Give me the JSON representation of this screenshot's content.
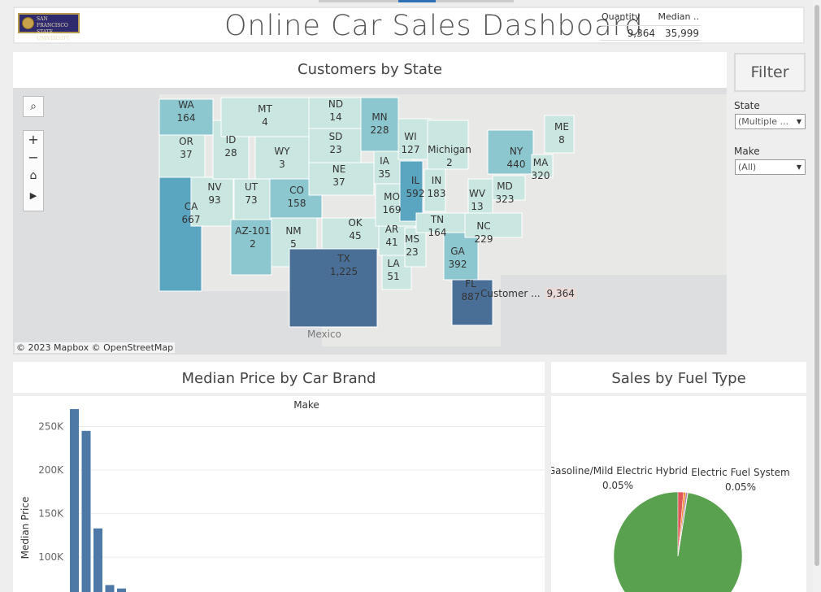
{
  "header": {
    "logo_text": "SAN FRANCISCO STATE UNIVERSITY",
    "title": "Online Car Sales Dashboard",
    "kpi": {
      "quantity_label": "Quantity",
      "median_label": "Median ..",
      "quantity_value": "9,364",
      "median_value": "35,999"
    }
  },
  "map": {
    "title": "Customers by State",
    "attribution": "© 2023 Mapbox  © OpenStreetMap",
    "mexico": "Mexico",
    "tooltip_label": "Customer ...",
    "tooltip_value": "9,364",
    "colors": {
      "low": "#c9e6e0",
      "mid": "#8cc6cf",
      "high": "#5aa5c0",
      "max": "#4a6f97"
    },
    "states": [
      {
        "abbr": "WA",
        "value": "164"
      },
      {
        "abbr": "OR",
        "value": "37"
      },
      {
        "abbr": "CA",
        "value": "667"
      },
      {
        "abbr": "NV",
        "value": "93"
      },
      {
        "abbr": "ID",
        "value": "28"
      },
      {
        "abbr": "MT",
        "value": "4"
      },
      {
        "abbr": "WY",
        "value": "3"
      },
      {
        "abbr": "UT",
        "value": "73"
      },
      {
        "abbr": "AZ-101",
        "value": "2"
      },
      {
        "abbr": "CO",
        "value": "158"
      },
      {
        "abbr": "NM",
        "value": "5"
      },
      {
        "abbr": "ND",
        "value": "14"
      },
      {
        "abbr": "SD",
        "value": "23"
      },
      {
        "abbr": "NE",
        "value": "37"
      },
      {
        "abbr": "OK",
        "value": "45"
      },
      {
        "abbr": "TX",
        "value": "1,225"
      },
      {
        "abbr": "MN",
        "value": "228"
      },
      {
        "abbr": "IA",
        "value": "35"
      },
      {
        "abbr": "MO",
        "value": "169"
      },
      {
        "abbr": "AR",
        "value": "41"
      },
      {
        "abbr": "LA",
        "value": "51"
      },
      {
        "abbr": "WI",
        "value": "127"
      },
      {
        "abbr": "IL",
        "value": "592"
      },
      {
        "abbr": "MS",
        "value": "23"
      },
      {
        "abbr": "Michigan",
        "value": "2"
      },
      {
        "abbr": "IN",
        "value": "183"
      },
      {
        "abbr": "TN",
        "value": "164"
      },
      {
        "abbr": "GA",
        "value": "392"
      },
      {
        "abbr": "FL",
        "value": "887"
      },
      {
        "abbr": "WV",
        "value": "13"
      },
      {
        "abbr": "NC",
        "value": "229"
      },
      {
        "abbr": "NY",
        "value": "440"
      },
      {
        "abbr": "MD",
        "value": "323"
      },
      {
        "abbr": "MA",
        "value": "320"
      },
      {
        "abbr": "ME",
        "value": "8"
      }
    ],
    "controls": [
      "search-icon",
      "zoom-in-icon",
      "zoom-out-icon",
      "home-icon",
      "play-icon"
    ]
  },
  "filters": {
    "button_label": "Filter",
    "state_label": "State",
    "state_value": "(Multiple ...",
    "make_label": "Make",
    "make_value": "(All)"
  },
  "bar_chart": {
    "title": "Median Price by Car Brand"
  },
  "pie_chart": {
    "title": "Sales by Fuel Type"
  },
  "chart_data": [
    {
      "type": "bar",
      "title": "Median Price by Car Brand",
      "header_label": "Make",
      "ylabel": "Median Price",
      "ytick_labels": [
        "250K",
        "200K",
        "150K",
        "100K"
      ],
      "yticks": [
        250000,
        200000,
        150000,
        100000
      ],
      "ylim": [
        60000,
        285000
      ],
      "values": [
        270000,
        245000,
        133000,
        68000,
        64000
      ],
      "color": "#4e79a7",
      "grid": true
    },
    {
      "type": "pie",
      "title": "Sales by Fuel Type",
      "slices": [
        {
          "name": "Gasoline",
          "value": 97.5,
          "color": "#59a14f"
        },
        {
          "name": "",
          "value": 1.4,
          "color": "#e15759"
        },
        {
          "name": "",
          "value": 0.55,
          "color": "#f28e2b"
        },
        {
          "name": "",
          "value": 0.45,
          "color": "#b07aa1"
        },
        {
          "name": "Gasoline/Mild Electric Hybrid",
          "label": "0.05%",
          "value": 0.05,
          "color": "#9c755f"
        },
        {
          "name": "Electric Fuel System",
          "label": "0.05%",
          "value": 0.05,
          "color": "#76b7b2"
        }
      ],
      "annotations": [
        {
          "name": "Gasoline/Mild Electric Hybrid",
          "pct": "0.05%"
        },
        {
          "name": "Electric Fuel System",
          "pct": "0.05%"
        }
      ]
    }
  ]
}
